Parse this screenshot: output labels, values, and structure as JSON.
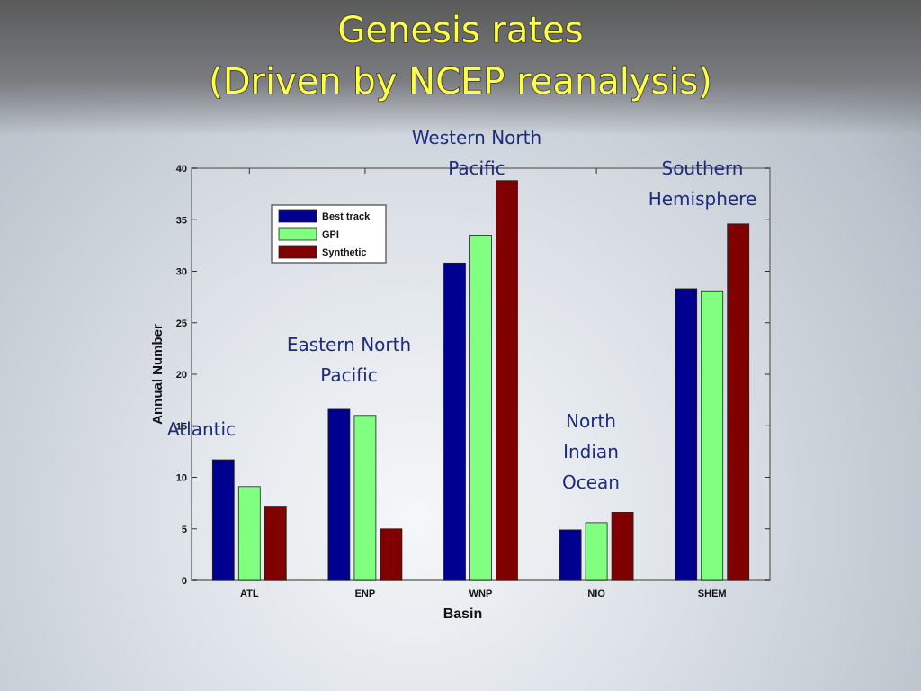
{
  "chart_data": {
    "type": "bar",
    "title": [
      "Genesis rates",
      "(Driven by NCEP reanalysis)"
    ],
    "x_label": "Basin",
    "y_label": "Annual Number",
    "categories": [
      "ATL",
      "ENP",
      "WNP",
      "NIO",
      "SHEM"
    ],
    "series": [
      {
        "name": "Best track",
        "color": "#000090",
        "values": [
          11.7,
          16.6,
          30.8,
          4.9,
          28.3
        ]
      },
      {
        "name": "GPI",
        "color": "#80ff80",
        "values": [
          9.1,
          16.0,
          33.5,
          5.6,
          28.1
        ]
      },
      {
        "name": "Synthetic",
        "color": "#800000",
        "values": [
          7.2,
          5.0,
          38.8,
          6.6,
          34.6
        ]
      }
    ],
    "ylim": [
      0,
      40
    ],
    "yticks": [
      0,
      5,
      10,
      15,
      20,
      25,
      30,
      35,
      40
    ],
    "legend": "upper left",
    "annotations": [
      [
        "Atlantic"
      ],
      [
        "Eastern North",
        "Pacific"
      ],
      [
        "Western North",
        "Pacific"
      ],
      [
        "North",
        "Indian",
        "Ocean"
      ],
      [
        "Southern",
        "Hemisphere"
      ]
    ]
  }
}
